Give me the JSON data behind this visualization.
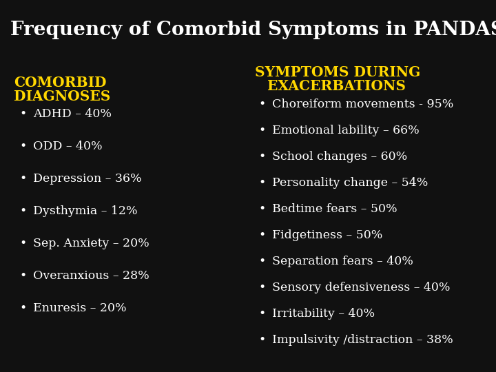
{
  "title": "Frequency of Comorbid Symptoms in PANDAS",
  "title_color": "#FFFFFF",
  "title_fontsize": 20,
  "background_color": "#111111",
  "left_header_line1": "COMORBID",
  "left_header_line2": "DIAGNOSES",
  "left_header_color": "#FFD700",
  "left_items": [
    "ADHD – 40%",
    "ODD – 40%",
    "Depression – 36%",
    "Dysthymia – 12%",
    "Sep. Anxiety – 20%",
    "Overanxious – 28%",
    "Enuresis – 20%"
  ],
  "left_items_color": "#FFFFFF",
  "right_header_line1": "SYMPTOMS DURING",
  "right_header_line2": "    EXACERBATIONS",
  "right_header_color": "#FFD700",
  "right_items": [
    "Choreiform movements - 95%",
    "Emotional lability – 66%",
    "School changes – 60%",
    "Personality change – 54%",
    "Bedtime fears – 50%",
    "Fidgetiness – 50%",
    "Separation fears – 40%",
    "Sensory defensiveness – 40%",
    "Irritability – 40%",
    "Impulsivity /distraction – 38%"
  ],
  "right_items_color": "#FFFFFF",
  "bullet": "•",
  "item_fontsize": 12.5,
  "header_fontsize": 14.5
}
